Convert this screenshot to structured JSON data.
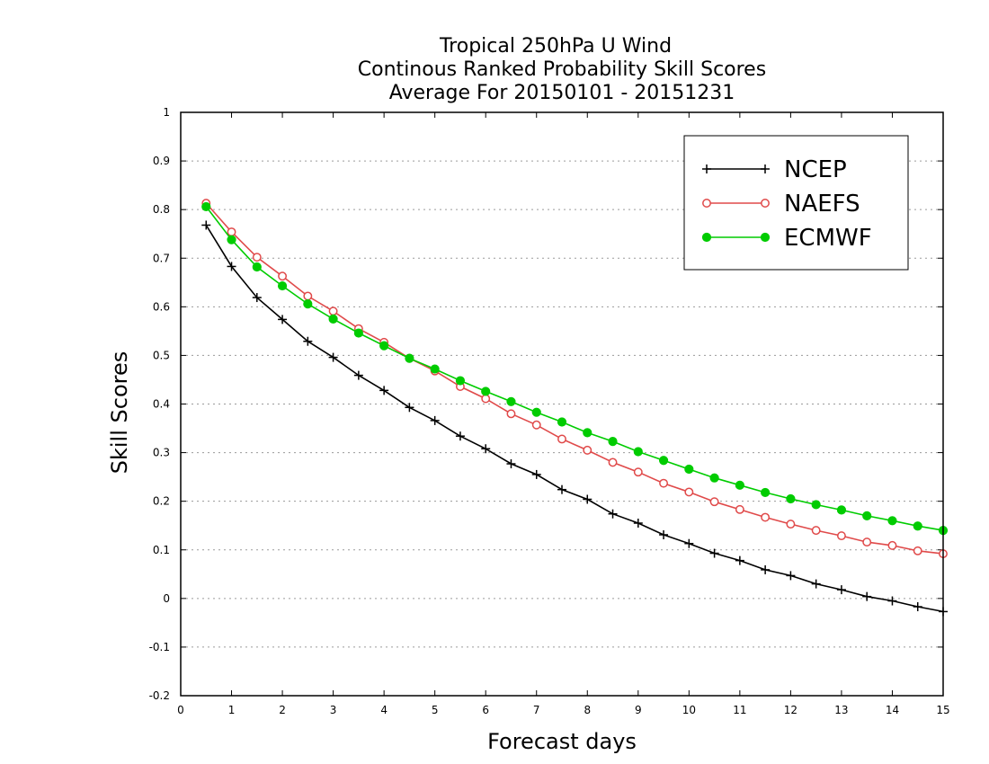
{
  "chart_data": {
    "type": "line",
    "title_lines": [
      "Tropical 250hPa U Wind",
      "Continous Ranked Probability Skill Scores",
      "Average For 20150101 - 20151231"
    ],
    "xlabel": "Forecast days",
    "ylabel": "Skill Scores",
    "xlim": [
      0,
      15
    ],
    "ylim": [
      -0.2,
      1
    ],
    "x_ticks": [
      0,
      1,
      2,
      3,
      4,
      5,
      6,
      7,
      8,
      9,
      10,
      11,
      12,
      13,
      14,
      15
    ],
    "x_tick_labels": [
      "0",
      "1",
      "2",
      "3",
      "4",
      "5",
      "6",
      "7",
      "8",
      "9",
      "10",
      "11",
      "12",
      "13",
      "14",
      "15"
    ],
    "y_ticks": [
      -0.2,
      -0.1,
      0,
      0.1,
      0.2,
      0.3,
      0.4,
      0.5,
      0.6,
      0.7,
      0.8,
      0.9,
      1
    ],
    "y_tick_labels": [
      "-0.2",
      "-0.1",
      "0",
      "0.1",
      "0.2",
      "0.3",
      "0.4",
      "0.5",
      "0.6",
      "0.7",
      "0.8",
      "0.9",
      "1"
    ],
    "grid": "horizontal dotted",
    "legend_position": "top-right",
    "x": [
      0.5,
      1,
      1.5,
      2,
      2.5,
      3,
      3.5,
      4,
      4.5,
      5,
      5.5,
      6,
      6.5,
      7,
      7.5,
      8,
      8.5,
      9,
      9.5,
      10,
      10.5,
      11,
      11.5,
      12,
      12.5,
      13,
      13.5,
      14,
      14.5,
      15
    ],
    "series": [
      {
        "name": "NCEP",
        "color": "#000000",
        "marker": "plus",
        "values": [
          0.768,
          0.683,
          0.619,
          0.574,
          0.529,
          0.496,
          0.459,
          0.428,
          0.393,
          0.366,
          0.334,
          0.308,
          0.277,
          0.255,
          0.224,
          0.204,
          0.174,
          0.155,
          0.131,
          0.113,
          0.093,
          0.078,
          0.059,
          0.047,
          0.03,
          0.018,
          0.004,
          -0.005,
          -0.017,
          -0.027
        ]
      },
      {
        "name": "NAEFS",
        "color": "#e04a4a",
        "marker": "open-circle",
        "values": [
          0.813,
          0.754,
          0.702,
          0.663,
          0.622,
          0.591,
          0.555,
          0.527,
          0.494,
          0.468,
          0.436,
          0.411,
          0.38,
          0.357,
          0.328,
          0.305,
          0.28,
          0.26,
          0.237,
          0.219,
          0.199,
          0.183,
          0.167,
          0.153,
          0.14,
          0.129,
          0.116,
          0.109,
          0.098,
          0.092
        ]
      },
      {
        "name": "ECMWF",
        "color": "#00cc00",
        "marker": "filled-circle",
        "values": [
          0.806,
          0.738,
          0.682,
          0.643,
          0.606,
          0.575,
          0.546,
          0.52,
          0.494,
          0.472,
          0.448,
          0.426,
          0.405,
          0.383,
          0.363,
          0.341,
          0.323,
          0.302,
          0.284,
          0.266,
          0.248,
          0.233,
          0.218,
          0.205,
          0.193,
          0.182,
          0.17,
          0.16,
          0.149,
          0.14
        ]
      }
    ]
  }
}
